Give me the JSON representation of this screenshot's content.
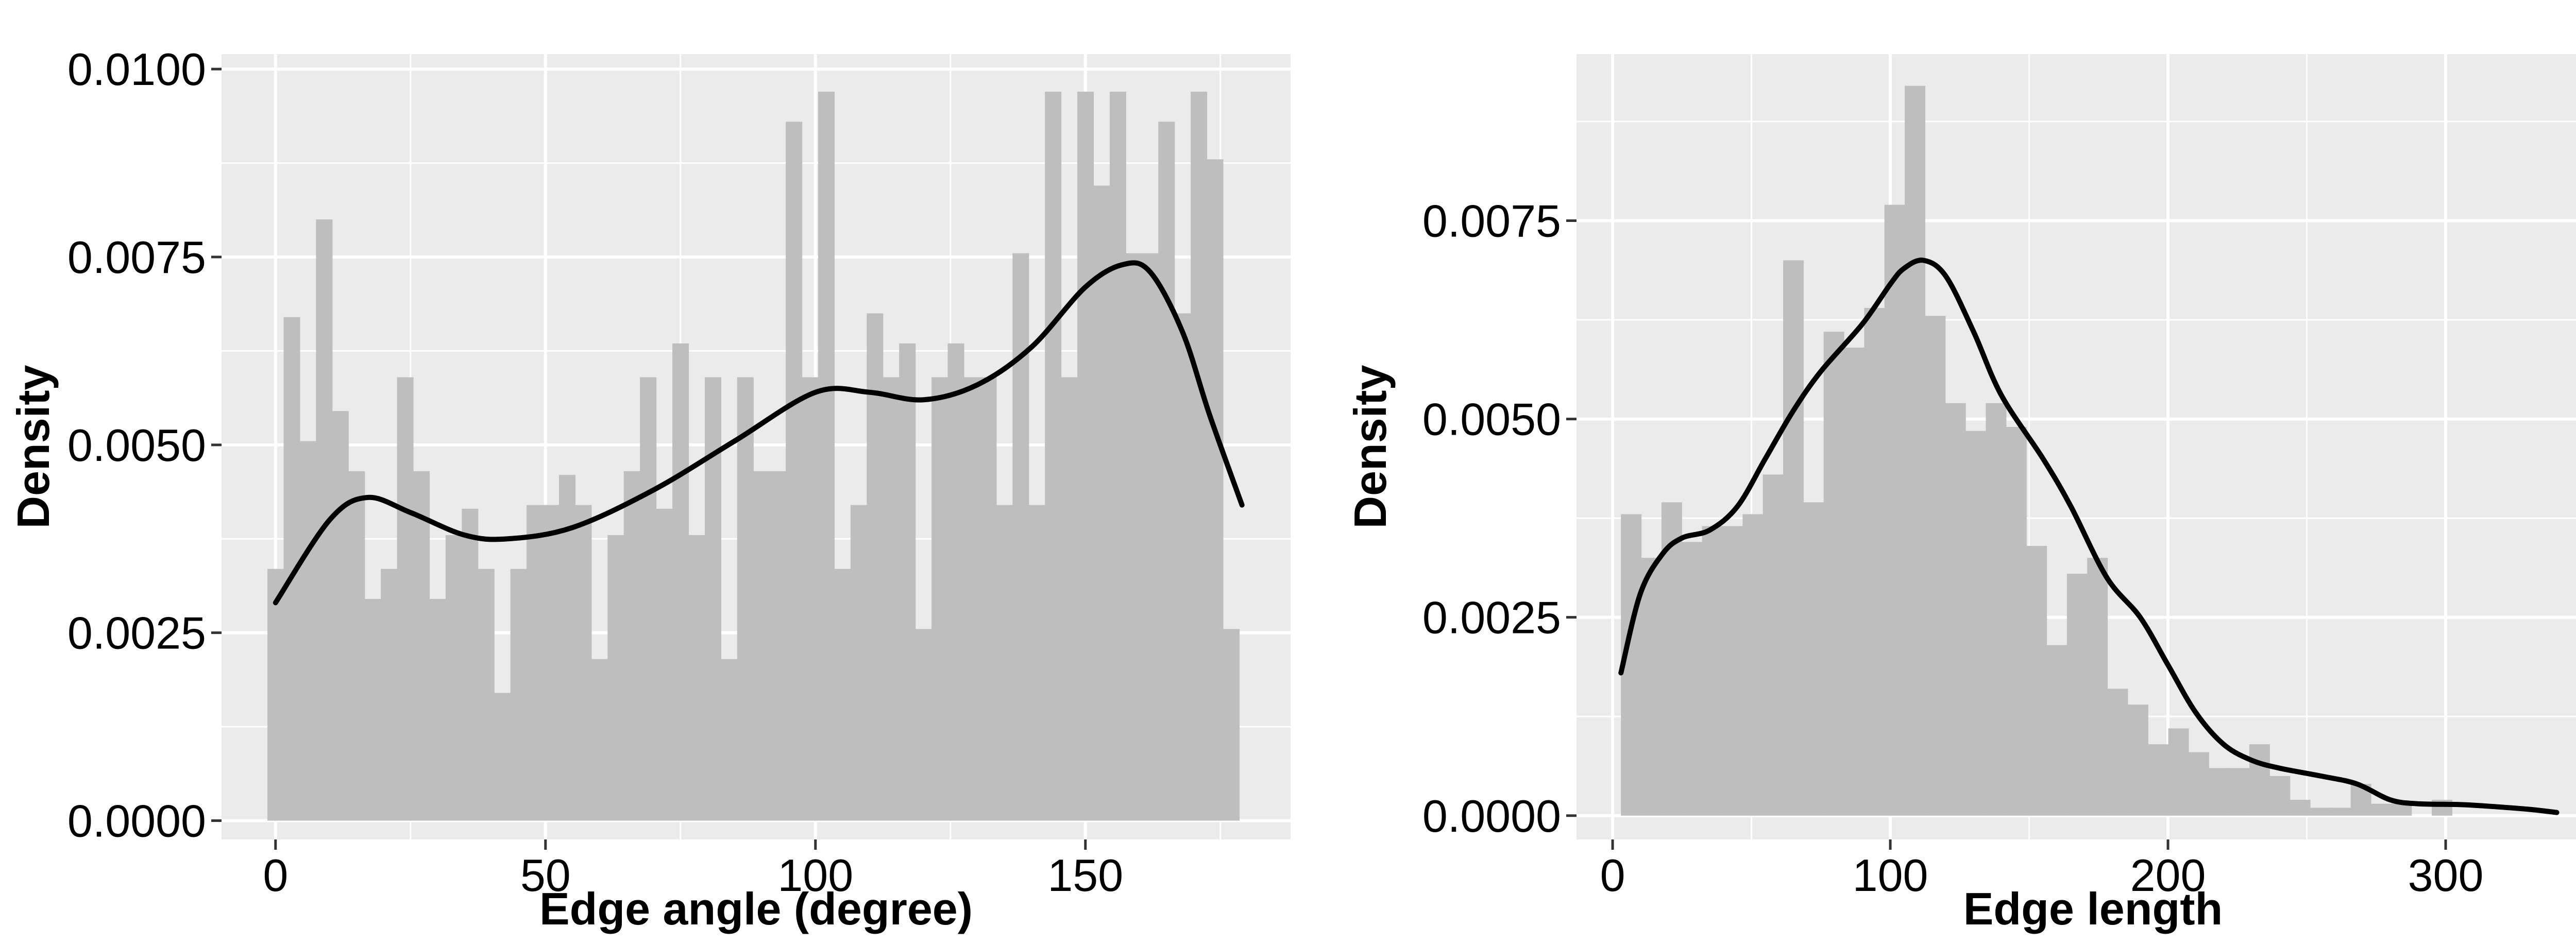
{
  "colors": {
    "panel": "#EBEBEB",
    "grid": "#FFFFFF",
    "bar": "#BEBEBE",
    "curve": "#000000",
    "text": "#000000"
  },
  "chart_data": [
    {
      "type": "bar",
      "overlay": "density-line",
      "title": "",
      "xlabel": "Edge angle (degree)",
      "ylabel": "Density",
      "xlim": [
        -10,
        188
      ],
      "ylim": [
        -0.00025,
        0.0102
      ],
      "grid": true,
      "legend": "none",
      "xticks": [
        0,
        50,
        100,
        150
      ],
      "xtick_labels": [
        "0",
        "50",
        "100",
        "150"
      ],
      "yticks": [
        0,
        0.0025,
        0.005,
        0.0075,
        0.01
      ],
      "ytick_labels": [
        "0.0000",
        "0.0025",
        "0.0050",
        "0.0075",
        "0.0100"
      ],
      "bin_start": -1.5,
      "bin_width": 3,
      "values": [
        0.00335,
        0.0067,
        0.00505,
        0.008,
        0.00545,
        0.00465,
        0.00295,
        0.00335,
        0.0059,
        0.00465,
        0.00295,
        0.0038,
        0.00415,
        0.00335,
        0.0017,
        0.00335,
        0.0042,
        0.0042,
        0.0046,
        0.0042,
        0.00215,
        0.0038,
        0.00465,
        0.0059,
        0.00415,
        0.00635,
        0.0038,
        0.0059,
        0.00215,
        0.0059,
        0.00465,
        0.00465,
        0.0093,
        0.0059,
        0.0097,
        0.00335,
        0.0042,
        0.00675,
        0.0059,
        0.00635,
        0.00255,
        0.0059,
        0.00635,
        0.0059,
        0.0059,
        0.0042,
        0.00755,
        0.0042,
        0.0097,
        0.0059,
        0.0097,
        0.00845,
        0.0097,
        0.00755,
        0.00755,
        0.0093,
        0.00675,
        0.0097,
        0.0088,
        0.00255
      ],
      "density_line": {
        "x": [
          0,
          10,
          17,
          25,
          35,
          43,
          55,
          70,
          85,
          100,
          110,
          120,
          130,
          140,
          150,
          157,
          162,
          168,
          173,
          179
        ],
        "y": [
          0.0029,
          0.004,
          0.0043,
          0.0041,
          0.0038,
          0.00375,
          0.0039,
          0.0044,
          0.00505,
          0.0057,
          0.0057,
          0.0056,
          0.0058,
          0.0063,
          0.0071,
          0.0074,
          0.0073,
          0.0065,
          0.0054,
          0.0042
        ]
      }
    },
    {
      "type": "bar",
      "overlay": "density-line",
      "title": "",
      "xlabel": "Edge length",
      "ylabel": "Density",
      "xlim": [
        -13,
        359
      ],
      "ylim": [
        -0.0003,
        0.0096
      ],
      "grid": true,
      "legend": "none",
      "xticks": [
        0,
        100,
        200,
        300
      ],
      "xtick_labels": [
        "0",
        "100",
        "200",
        "300"
      ],
      "yticks": [
        0,
        0.0025,
        0.005,
        0.0075
      ],
      "ytick_labels": [
        "0.0000",
        "0.0025",
        "0.0050",
        "0.0075"
      ],
      "bin_start": 3,
      "bin_width": 7.3,
      "values": [
        0.0038,
        0.00325,
        0.00395,
        0.00345,
        0.00365,
        0.00365,
        0.0038,
        0.0043,
        0.007,
        0.00395,
        0.0061,
        0.0059,
        0.0064,
        0.0077,
        0.0092,
        0.0063,
        0.0052,
        0.00485,
        0.0052,
        0.0049,
        0.0034,
        0.00215,
        0.00305,
        0.00325,
        0.0016,
        0.0014,
        0.0009,
        0.0011,
        0.0008,
        0.0006,
        0.0006,
        0.0009,
        0.0005,
        0.0002,
        0.0001,
        0.0001,
        0.0004,
        0.00015,
        0.00015,
        0.0,
        0.0002
      ],
      "density_line": {
        "x": [
          3,
          10,
          18,
          25,
          35,
          45,
          55,
          65,
          75,
          90,
          100,
          105,
          112,
          120,
          130,
          140,
          155,
          165,
          178,
          190,
          200,
          210,
          220,
          230,
          240,
          255,
          268,
          280,
          290,
          305,
          315,
          330,
          340
        ],
        "y": [
          0.0018,
          0.0028,
          0.0033,
          0.0035,
          0.0036,
          0.0039,
          0.0045,
          0.0051,
          0.0056,
          0.0062,
          0.0067,
          0.0069,
          0.007,
          0.0068,
          0.0061,
          0.0053,
          0.0045,
          0.0039,
          0.003,
          0.0025,
          0.0019,
          0.0013,
          0.0009,
          0.0007,
          0.0006,
          0.0005,
          0.0004,
          0.0002,
          0.00015,
          0.00014,
          0.00012,
          8e-05,
          4e-05
        ]
      }
    }
  ]
}
